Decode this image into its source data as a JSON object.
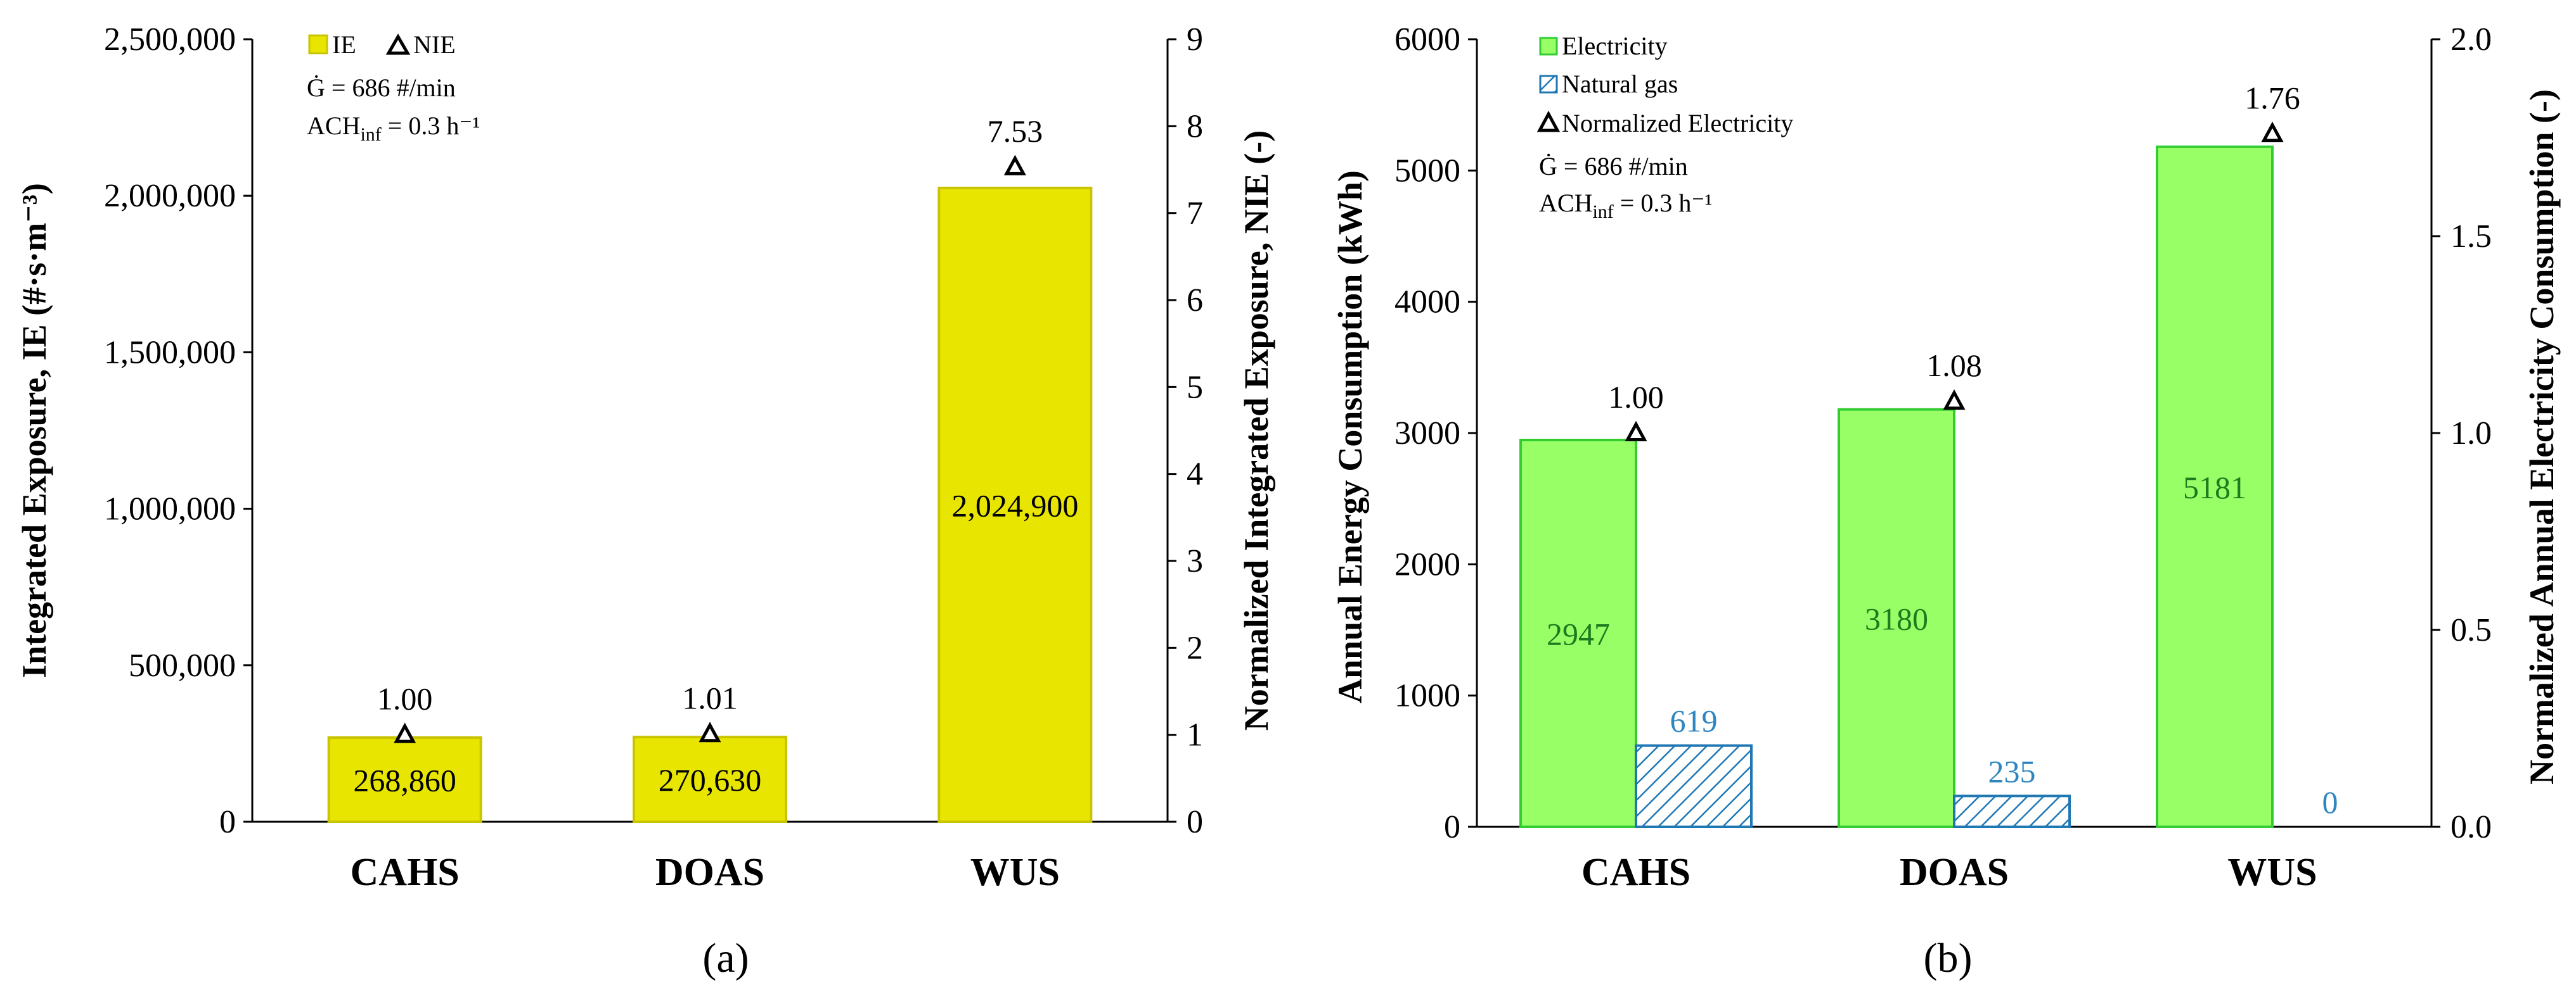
{
  "colors": {
    "ie_fill": "#E8E600",
    "ie_stroke": "#C9C400",
    "elec_fill": "#99FF66",
    "elec_stroke": "#33CC33",
    "gas_stroke": "#1F77B4",
    "elec_label": "#1E7A1E",
    "gas_label": "#2E86C1"
  },
  "chart_data": [
    {
      "type": "bar",
      "panel_label": "(a)",
      "categories": [
        "CAHS",
        "DOAS",
        "WUS"
      ],
      "series": [
        {
          "name": "IE",
          "values": [
            268860,
            270630,
            2024900
          ],
          "labels": [
            "268,860",
            "270,630",
            "2,024,900"
          ]
        },
        {
          "name": "NIE",
          "values": [
            1.0,
            1.01,
            7.53
          ],
          "labels": [
            "1.00",
            "1.01",
            "7.53"
          ],
          "axis": "right",
          "marker": "triangle"
        }
      ],
      "ylabel": "Integrated Exposure, IE (#·s·m⁻³)",
      "y2label": "Normalized Integrated Exposure, NIE (-)",
      "ylim": [
        0,
        2500000
      ],
      "y2lim": [
        0,
        9
      ],
      "yticks": [
        "0",
        "500,000",
        "1,000,000",
        "1,500,000",
        "2,000,000",
        "2,500,000"
      ],
      "y2ticks": [
        "0",
        "1",
        "2",
        "3",
        "4",
        "5",
        "6",
        "7",
        "8",
        "9"
      ],
      "legend": [
        "IE",
        "NIE"
      ],
      "annotations": {
        "g_dot": "Ġ = 686 #/min",
        "ach": "ACH",
        "ach_sub": "inf",
        "ach_rest": " = 0.3 h⁻¹"
      }
    },
    {
      "type": "bar",
      "panel_label": "(b)",
      "categories": [
        "CAHS",
        "DOAS",
        "WUS"
      ],
      "series": [
        {
          "name": "Electricity",
          "values": [
            2947,
            3180,
            5181
          ],
          "labels": [
            "2947",
            "3180",
            "5181"
          ]
        },
        {
          "name": "Natural gas",
          "values": [
            619,
            235,
            0
          ],
          "labels": [
            "619",
            "235",
            "0"
          ]
        },
        {
          "name": "Normalized Electricity",
          "values": [
            1.0,
            1.08,
            1.76
          ],
          "labels": [
            "1.00",
            "1.08",
            "1.76"
          ],
          "axis": "right",
          "marker": "triangle"
        }
      ],
      "ylabel": "Annual Energy Consumption (kWh)",
      "y2label": "Normalized Annual Electricity Consumption (-)",
      "ylim": [
        0,
        6000
      ],
      "y2lim": [
        0,
        2.0
      ],
      "yticks": [
        "0",
        "1000",
        "2000",
        "3000",
        "4000",
        "5000",
        "6000"
      ],
      "y2ticks": [
        "0.0",
        "0.5",
        "1.0",
        "1.5",
        "2.0"
      ],
      "legend": [
        "Electricity",
        "Natural gas",
        "Normalized Electricity"
      ],
      "annotations": {
        "g_dot": "Ġ = 686 #/min",
        "ach": "ACH",
        "ach_sub": "inf",
        "ach_rest": " = 0.3 h⁻¹"
      }
    }
  ]
}
